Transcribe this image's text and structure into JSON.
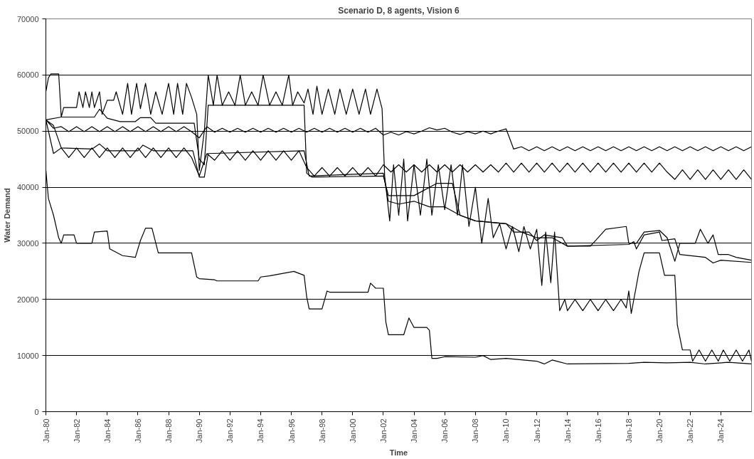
{
  "chart_data": {
    "type": "line",
    "title": "Scenario D, 8 agents, Vision 6",
    "xlabel": "Time",
    "ylabel": "Water Demand",
    "xlim": [
      "1980-01",
      "2026-01"
    ],
    "ylim": [
      0,
      70000
    ],
    "xticks": [
      {
        "value": "1980-01",
        "label": "Jan-80"
      },
      {
        "value": "1982-01",
        "label": "Jan-82"
      },
      {
        "value": "1984-01",
        "label": "Jan-84"
      },
      {
        "value": "1986-01",
        "label": "Jan-86"
      },
      {
        "value": "1988-01",
        "label": "Jan-88"
      },
      {
        "value": "1990-01",
        "label": "Jan-90"
      },
      {
        "value": "1992-01",
        "label": "Jan-92"
      },
      {
        "value": "1994-01",
        "label": "Jan-94"
      },
      {
        "value": "1996-01",
        "label": "Jan-96"
      },
      {
        "value": "1998-01",
        "label": "Jan-98"
      },
      {
        "value": "2000-01",
        "label": "Jan-00"
      },
      {
        "value": "2002-01",
        "label": "Jan-02"
      },
      {
        "value": "2004-01",
        "label": "Jan-04"
      },
      {
        "value": "2006-01",
        "label": "Jan-06"
      },
      {
        "value": "2008-01",
        "label": "Jan-08"
      },
      {
        "value": "2010-01",
        "label": "Jan-10"
      },
      {
        "value": "2012-01",
        "label": "Jan-12"
      },
      {
        "value": "2014-01",
        "label": "Jan-14"
      },
      {
        "value": "2016-01",
        "label": "Jan-16"
      },
      {
        "value": "2018-01",
        "label": "Jan-18"
      },
      {
        "value": "2020-01",
        "label": "Jan-20"
      },
      {
        "value": "2022-01",
        "label": "Jan-22"
      },
      {
        "value": "2024-01",
        "label": "Jan-24"
      }
    ],
    "yticks": [
      0,
      10000,
      20000,
      30000,
      40000,
      50000,
      60000,
      70000
    ],
    "grid": "y",
    "marker": "none",
    "line_style": "solid",
    "x": [
      "1980-01",
      "1980-07",
      "1981-01",
      "1981-07",
      "1982-01",
      "1982-07",
      "1983-01",
      "1983-07",
      "1984-01",
      "1984-07",
      "1985-01",
      "1985-07",
      "1986-01",
      "1986-07",
      "1987-01",
      "1987-07",
      "1988-01",
      "1988-07",
      "1989-01",
      "1989-07",
      "1990-01",
      "1990-07",
      "1991-01",
      "1991-07",
      "1992-01",
      "1992-07",
      "1993-01",
      "1993-07",
      "1994-01",
      "1994-07",
      "1995-01",
      "1995-07",
      "1996-01",
      "1996-07",
      "1997-01",
      "1997-07",
      "1998-01",
      "1998-07",
      "1999-01",
      "1999-07",
      "2000-01",
      "2000-07",
      "2001-01",
      "2001-07",
      "2002-01",
      "2002-07",
      "2003-01",
      "2003-07",
      "2004-01",
      "2004-07",
      "2005-01",
      "2005-07",
      "2006-01",
      "2006-07",
      "2007-01",
      "2007-07",
      "2008-01",
      "2008-07",
      "2009-01",
      "2009-07",
      "2010-01",
      "2010-07",
      "2011-01",
      "2011-07",
      "2012-01",
      "2012-07",
      "2013-01",
      "2013-07",
      "2014-01",
      "2014-07",
      "2015-01",
      "2015-07",
      "2016-01",
      "2016-07",
      "2017-01",
      "2017-07",
      "2018-01",
      "2018-07",
      "2019-01",
      "2019-07",
      "2020-01",
      "2020-07",
      "2021-01",
      "2021-07",
      "2022-01",
      "2022-07",
      "2023-01",
      "2023-07",
      "2024-01",
      "2024-07",
      "2025-01",
      "2025-07",
      "2026-01"
    ],
    "series": [
      {
        "color": "#000000",
        "x": [
          "1980-01",
          "1980-03",
          "1980-05",
          "1980-11",
          "1981-01",
          "1981-03",
          "1982-01",
          "1982-03",
          "1982-06",
          "1982-08",
          "1982-11",
          "1983-01",
          "1983-03",
          "1983-07",
          "1983-09",
          "1984-01",
          "1984-06",
          "1984-08",
          "1985-01",
          "1985-05",
          "1985-08",
          "1985-12",
          "1986-03",
          "1986-07",
          "1986-11",
          "1987-03",
          "1987-08",
          "1988-01",
          "1988-05",
          "1988-08",
          "1988-12",
          "1989-03",
          "1989-07",
          "1989-11",
          "1990-01",
          "1990-05",
          "1990-08",
          "1990-12",
          "1991-03",
          "1991-07",
          "1991-12",
          "1992-05",
          "1992-09",
          "1993-01",
          "1993-06",
          "1993-11",
          "1994-03",
          "1994-08",
          "1995-01",
          "1995-06",
          "1995-11",
          "1996-02",
          "1996-06",
          "1996-11",
          "1997-02",
          "1997-06",
          "1997-09",
          "1998-01",
          "1998-06",
          "1998-11",
          "1999-03",
          "1999-08",
          "2000-01",
          "2000-06",
          "2000-11",
          "2001-03",
          "2001-08",
          "2001-12",
          "2002-02",
          "2002-06",
          "2002-09",
          "2003-01",
          "2003-05",
          "2003-08",
          "2004-01",
          "2004-06",
          "2004-11",
          "2005-03",
          "2005-08",
          "2006-01",
          "2006-06",
          "2006-11",
          "2007-03",
          "2007-08",
          "2008-01",
          "2008-06",
          "2008-11",
          "2009-03",
          "2009-08",
          "2010-01",
          "2010-06",
          "2010-11",
          "2011-03",
          "2011-08",
          "2012-01",
          "2012-05",
          "2012-08",
          "2012-12",
          "2013-03",
          "2013-07",
          "2013-11",
          "2014-01",
          "2014-07",
          "2015-01",
          "2015-07",
          "2016-01",
          "2016-07",
          "2017-01",
          "2017-07",
          "2017-11",
          "2018-01",
          "2018-03",
          "2018-09",
          "2019-01",
          "2020-01",
          "2020-05",
          "2021-01",
          "2021-03",
          "2021-07",
          "2022-01",
          "2022-03",
          "2022-08",
          "2023-01",
          "2023-06",
          "2023-11",
          "2024-03",
          "2024-08",
          "2025-01",
          "2025-06",
          "2025-11",
          "2026-01"
        ],
        "values": [
          57000,
          59500,
          60200,
          60200,
          52500,
          54200,
          54200,
          57000,
          54200,
          57000,
          54200,
          57000,
          54200,
          57000,
          53000,
          55500,
          55500,
          57000,
          53000,
          58500,
          53000,
          58500,
          54000,
          58500,
          53000,
          57000,
          53000,
          58500,
          53000,
          58500,
          53000,
          58500,
          56000,
          53000,
          43000,
          50000,
          60000,
          54600,
          60000,
          54600,
          57000,
          54600,
          60000,
          54600,
          57000,
          54600,
          60000,
          54600,
          57000,
          54600,
          60000,
          54600,
          57000,
          55000,
          57500,
          53000,
          58000,
          53000,
          57500,
          53000,
          57500,
          53000,
          57500,
          53000,
          57500,
          53000,
          57500,
          54000,
          42000,
          34000,
          44000,
          35000,
          45000,
          34000,
          44000,
          35000,
          45000,
          35000,
          44000,
          36000,
          44000,
          35000,
          44000,
          33000,
          40000,
          30000,
          38000,
          31000,
          33500,
          29000,
          33000,
          28500,
          33000,
          29000,
          32500,
          22500,
          32000,
          23000,
          32000,
          18000,
          20000,
          18000,
          20000,
          18000,
          20000,
          18000,
          20000,
          18000,
          20000,
          18500,
          21500,
          17500,
          25000,
          28300,
          28300,
          24300,
          24300,
          15500,
          11000,
          11000,
          9000,
          11000,
          9000,
          11000,
          9000,
          11000,
          9000,
          11000,
          9000,
          11000,
          9000
        ]
      },
      {
        "color": "#000000",
        "x": [
          "1980-01",
          "1981-01",
          "1983-03",
          "1983-07",
          "1984-01",
          "1984-11",
          "1985-11",
          "1986-03",
          "1986-11",
          "1987-03",
          "1989-09",
          "1990-01",
          "1990-05",
          "1990-08",
          "1996-11",
          "1997-01",
          "1997-05",
          "2002-01",
          "2002-05",
          "2003-01",
          "2004-01",
          "2005-07",
          "2006-07",
          "2007-01",
          "2008-01",
          "2010-01",
          "2011-01",
          "2012-01",
          "2013-01",
          "2014-01",
          "2015-07",
          "2016-01",
          "2016-07",
          "2017-11",
          "2018-01",
          "2018-07",
          "2019-01",
          "2020-01",
          "2020-07",
          "2021-01",
          "2021-05",
          "2021-07",
          "2022-05",
          "2022-09",
          "2023-03",
          "2023-07",
          "2023-11",
          "2024-01",
          "2024-07",
          "2025-01",
          "2026-01"
        ],
        "values": [
          52000,
          52500,
          52500,
          53900,
          52300,
          51700,
          51700,
          52400,
          52400,
          51400,
          51400,
          45000,
          44000,
          54600,
          54600,
          42500,
          41800,
          42000,
          38500,
          38500,
          38500,
          40700,
          40700,
          35000,
          34000,
          33500,
          32000,
          31000,
          31000,
          29500,
          29500,
          31000,
          32500,
          33000,
          30000,
          30000,
          32000,
          32300,
          31000,
          26800,
          30000,
          30000,
          30000,
          32500,
          30000,
          31500,
          28000,
          28000,
          28000,
          27500,
          27000
        ]
      },
      {
        "color": "#000000",
        "values": [
          52000,
          50500,
          50800,
          49900,
          50800,
          49900,
          50800,
          49900,
          50800,
          49900,
          50800,
          49900,
          50800,
          49900,
          50800,
          49900,
          50800,
          49900,
          50800,
          49900,
          48800,
          50800,
          49800,
          50500,
          49800,
          50500,
          49800,
          50500,
          49800,
          50500,
          49800,
          50500,
          49800,
          50500,
          49800,
          50500,
          49800,
          50500,
          49800,
          50500,
          49800,
          50500,
          49800,
          50500,
          49300,
          49800,
          49300,
          49900,
          49500,
          50000,
          50600,
          50200,
          50500,
          49800,
          49400,
          49900,
          49500,
          50000,
          49500,
          50000,
          50400,
          46800,
          47200,
          46500,
          47200,
          46500,
          47200,
          46500,
          47200,
          46500,
          47200,
          46500,
          47200,
          46500,
          47200,
          46500,
          47200,
          46500,
          47200,
          46500,
          47200,
          46500,
          47200,
          46500,
          47200,
          46500,
          47200,
          46500,
          47200,
          46500,
          47200,
          46500,
          47200
        ]
      },
      {
        "color": "#000000",
        "x": [
          "1980-01",
          "1980-07",
          "1981-01",
          "1983-01",
          "1983-07",
          "1984-01",
          "1986-01",
          "1986-05",
          "1987-01",
          "1989-08",
          "1990-01",
          "1990-05",
          "1990-08",
          "1996-11",
          "1997-03",
          "2002-01",
          "2002-05",
          "2003-01",
          "2004-01",
          "2005-01",
          "2006-01",
          "2007-01",
          "2008-01",
          "2010-01",
          "2010-07",
          "2011-07",
          "2012-01",
          "2012-07",
          "2013-09",
          "2014-01",
          "2018-01",
          "2018-05",
          "2018-07",
          "2019-01",
          "2020-01",
          "2020-03",
          "2021-01",
          "2021-05",
          "2023-01",
          "2023-07",
          "2024-01",
          "2026-01"
        ],
        "values": [
          52000,
          51000,
          47000,
          46800,
          47700,
          46500,
          46500,
          47500,
          46500,
          46500,
          41800,
          41800,
          46000,
          46500,
          42000,
          42500,
          37500,
          37000,
          37500,
          36500,
          36500,
          35000,
          34000,
          33500,
          32000,
          32000,
          30500,
          31500,
          31000,
          29500,
          29800,
          30300,
          29000,
          31500,
          32000,
          30500,
          30800,
          28000,
          27500,
          26500,
          27000,
          26600
        ]
      },
      {
        "color": "#000000",
        "values": [
          52000,
          46000,
          47000,
          45300,
          47000,
          45300,
          47000,
          45300,
          47000,
          45300,
          47000,
          45300,
          47000,
          45300,
          47000,
          45300,
          47000,
          45300,
          47000,
          45300,
          42000,
          46000,
          44800,
          46500,
          44800,
          46500,
          44800,
          46500,
          44800,
          46500,
          44800,
          46500,
          44800,
          46500,
          43500,
          42000,
          43500,
          42000,
          43500,
          42000,
          43500,
          42000,
          43500,
          42000,
          44000,
          42700,
          44000,
          42700,
          44000,
          42700,
          44000,
          42700,
          44000,
          42700,
          44000,
          42700,
          44000,
          42700,
          44000,
          42700,
          44300,
          42700,
          44300,
          42700,
          44300,
          42700,
          44300,
          42700,
          44300,
          42700,
          44300,
          42700,
          44300,
          42700,
          44300,
          42700,
          44300,
          42700,
          44300,
          42700,
          44300,
          42700,
          41400,
          43100,
          41400,
          43100,
          41400,
          43100,
          41400,
          43100,
          41400,
          43100,
          41400
        ]
      },
      {
        "color": "#000000",
        "x": [
          "1980-01",
          "1980-03",
          "1980-07",
          "1980-11",
          "1981-01",
          "1981-03",
          "1981-11",
          "1982-01",
          "1983-01",
          "1983-03",
          "1984-01",
          "1984-03",
          "1985-01",
          "1985-11",
          "1986-03",
          "1986-07",
          "1986-12",
          "1987-05",
          "1989-07",
          "1989-11",
          "1990-01",
          "1991-01",
          "1991-03",
          "1993-11",
          "1994-01",
          "1994-08",
          "1996-03",
          "1996-11",
          "1997-01",
          "1997-03",
          "1998-01",
          "1998-05",
          "1998-07",
          "2001-01",
          "2001-03",
          "2001-07",
          "2002-01",
          "2002-03",
          "2002-05",
          "2003-05",
          "2003-09",
          "2004-01",
          "2004-11",
          "2005-01",
          "2005-03",
          "2005-07",
          "2006-01",
          "2008-01",
          "2008-07",
          "2009-01",
          "2010-01",
          "2012-01",
          "2012-07",
          "2013-01",
          "2014-01",
          "2018-01",
          "2019-01",
          "2020-07",
          "2022-01",
          "2023-01",
          "2024-07",
          "2026-01"
        ],
        "values": [
          43000,
          38000,
          35000,
          31000,
          30000,
          31500,
          31500,
          30000,
          30000,
          32000,
          32200,
          29000,
          27800,
          27500,
          30500,
          32700,
          32700,
          28300,
          28300,
          24000,
          23700,
          23500,
          23300,
          23300,
          24000,
          24200,
          25000,
          24300,
          20500,
          18300,
          18300,
          21500,
          21300,
          21300,
          22900,
          22000,
          22000,
          16000,
          13700,
          13700,
          16700,
          15000,
          15000,
          14500,
          9500,
          9500,
          9800,
          9700,
          10000,
          9300,
          9500,
          9000,
          8500,
          9200,
          8500,
          8600,
          8800,
          8700,
          8800,
          8500,
          8800,
          8500
        ]
      }
    ]
  }
}
